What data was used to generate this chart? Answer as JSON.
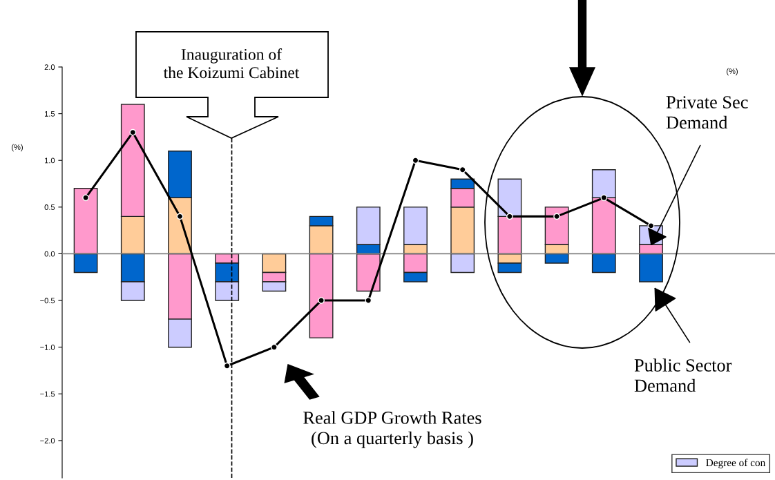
{
  "chart_data": {
    "type": "bar",
    "stacked": true,
    "categories": [
      null,
      null,
      null,
      null,
      null,
      null,
      null,
      null,
      null,
      null,
      null,
      null,
      null
    ],
    "series": [
      {
        "color": "#ffcc99",
        "values": [
          null,
          0.4,
          0.6,
          null,
          -0.2,
          0.3,
          null,
          0.1,
          0.5,
          -0.1,
          0.1,
          null,
          null
        ]
      },
      {
        "color": "#ff99cc",
        "values": [
          0.7,
          1.2,
          -0.7,
          -0.1,
          -0.1,
          -0.9,
          -0.4,
          -0.2,
          0.2,
          0.4,
          0.4,
          0.6,
          0.1
        ]
      },
      {
        "color": "#0066cc",
        "values": [
          -0.2,
          -0.3,
          0.5,
          -0.2,
          null,
          0.1,
          0.1,
          -0.1,
          0.1,
          -0.1,
          -0.1,
          -0.2,
          -0.3
        ]
      },
      {
        "name": "Degree of con",
        "color": "#ccccff",
        "values": [
          null,
          -0.2,
          -0.3,
          -0.2,
          -0.1,
          null,
          0.4,
          0.4,
          -0.2,
          0.4,
          null,
          0.3,
          0.2
        ]
      },
      {
        "type": "line",
        "color": "#000000",
        "marker": "circle",
        "values": [
          0.6,
          1.3,
          0.4,
          -1.2,
          -1.0,
          -0.5,
          -0.5,
          1.0,
          0.9,
          0.4,
          0.4,
          0.6,
          0.3
        ]
      }
    ],
    "ylabel": "(%)",
    "ylim": [
      -2.4,
      2.0
    ],
    "yticks": [
      {
        "value": -2.0,
        "label": "−2.0"
      },
      {
        "value": -1.5,
        "label": "−1.5"
      },
      {
        "value": -1.0,
        "label": "−1.0"
      },
      {
        "value": -0.5,
        "label": "−0.5"
      },
      {
        "value": 0,
        "label": "0.0"
      },
      {
        "value": 0.5,
        "label": "0.5"
      },
      {
        "value": 1.0,
        "label": "1.0"
      },
      {
        "value": 1.5,
        "label": "1.5"
      },
      {
        "value": 2.0,
        "label": "2.0"
      }
    ],
    "tick_labels": "y",
    "ref_lines": [
      {
        "axis": "y",
        "value": 0,
        "color": "#808080"
      }
    ],
    "annotations": [
      "Inauguration of\nthe Koizumi Cabinet",
      "Real GDP Growth Rates\n(On a quarterly basis )",
      "Private Sec\nDemand",
      "Public Sector\nDemand",
      "(%)"
    ],
    "legend": "bottom right",
    "grid": false
  }
}
